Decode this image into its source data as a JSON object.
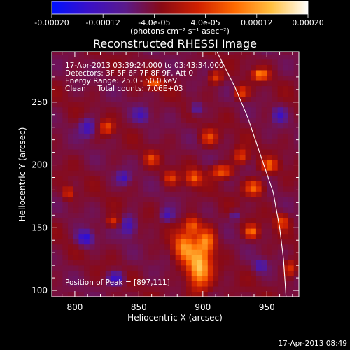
{
  "chart_data": {
    "type": "heatmap",
    "title": "Reconstructed RHESSI Image",
    "xlabel": "Heliocentric X (arcsec)",
    "ylabel": "Heliocentric Y (arcsec)",
    "xlim": [
      782,
      975
    ],
    "ylim": [
      95,
      290
    ],
    "x_ticks": [
      800,
      850,
      900,
      950
    ],
    "y_ticks": [
      100,
      150,
      200,
      250
    ],
    "x_tick_labels": [
      "800",
      "850",
      "900",
      "950"
    ],
    "y_tick_labels": [
      "100",
      "150",
      "200",
      "250"
    ],
    "colorbar": {
      "range": [
        -0.0002,
        0.0002
      ],
      "ticks": [
        -0.0002,
        -0.00012,
        -4e-05,
        4e-05,
        0.00012,
        0.0002
      ],
      "tick_labels": [
        "-0.00020",
        "-0.00012",
        "-4.0e-05",
        "4.0e-05",
        "0.00012",
        "0.00020"
      ],
      "units": "(photons cm⁻² s⁻¹ asec⁻²)",
      "colors": [
        "#0010ff",
        "#3a10c8",
        "#5a1a8c",
        "#8a0a14",
        "#d02000",
        "#ff6a00",
        "#ffc040",
        "#ffffff"
      ]
    },
    "annotations": {
      "time_range": "17-Apr-2013 03:39:24.000 to 03:43:34.000",
      "detectors": "Detectors: 3F 5F 6F 7F 8F 9F, Att 0",
      "energy_range": "Energy Range: 25.0 - 50.0 keV",
      "algorithm": "Clean     Total counts: 7.06E+03",
      "peak": "Position of Peak = [897,111]"
    },
    "peak": [
      897,
      111
    ],
    "limb_curve": [
      [
        910,
        292
      ],
      [
        925,
        262
      ],
      [
        935,
        238
      ],
      [
        945,
        208
      ],
      [
        955,
        178
      ],
      [
        960,
        150
      ],
      [
        963,
        125
      ],
      [
        965,
        95
      ]
    ],
    "blobs": [
      [
        897,
        118,
        9,
        17,
        0.00019
      ],
      [
        885,
        135,
        8,
        12,
        0.00014
      ],
      [
        903,
        140,
        7,
        10,
        0.00013
      ],
      [
        892,
        152,
        6,
        7,
        0.00012
      ],
      [
        893,
        190,
        6,
        6,
        0.00012
      ],
      [
        915,
        195,
        8,
        5,
        0.00012
      ],
      [
        940,
        182,
        7,
        6,
        0.00013
      ],
      [
        952,
        200,
        6,
        5,
        0.00012
      ],
      [
        930,
        207,
        5,
        6,
        0.0001
      ],
      [
        905,
        222,
        6,
        6,
        0.0001
      ],
      [
        875,
        190,
        5,
        5,
        9e-05
      ],
      [
        860,
        205,
        5,
        5,
        9e-05
      ],
      [
        825,
        230,
        5,
        5,
        0.0001
      ],
      [
        862,
        265,
        6,
        4,
        0.00012
      ],
      [
        910,
        270,
        5,
        5,
        0.0001
      ],
      [
        945,
        272,
        6,
        4,
        0.00015
      ],
      [
        930,
        258,
        5,
        5,
        0.0001
      ],
      [
        938,
        147,
        5,
        5,
        0.00013
      ],
      [
        962,
        155,
        5,
        6,
        0.0001
      ],
      [
        968,
        118,
        5,
        6,
        9e-05
      ],
      [
        830,
        155,
        5,
        4,
        9e-05
      ],
      [
        795,
        178,
        4,
        5,
        9e-05
      ],
      [
        808,
        142,
        6,
        6,
        -0.00012
      ],
      [
        832,
        110,
        6,
        5,
        -0.0001
      ],
      [
        842,
        152,
        6,
        8,
        -9e-05
      ],
      [
        810,
        230,
        6,
        7,
        -9e-05
      ],
      [
        838,
        190,
        5,
        5,
        -8e-05
      ],
      [
        872,
        160,
        5,
        5,
        -7e-05
      ],
      [
        852,
        240,
        6,
        6,
        -7e-05
      ],
      [
        895,
        245,
        5,
        5,
        -7e-05
      ],
      [
        960,
        240,
        5,
        6,
        -8e-05
      ],
      [
        945,
        120,
        5,
        5,
        -7e-05
      ],
      [
        925,
        160,
        4,
        4,
        -6e-05
      ]
    ],
    "grid": false,
    "legend": "none",
    "timestamp": "17-Apr-2013 08:49"
  }
}
